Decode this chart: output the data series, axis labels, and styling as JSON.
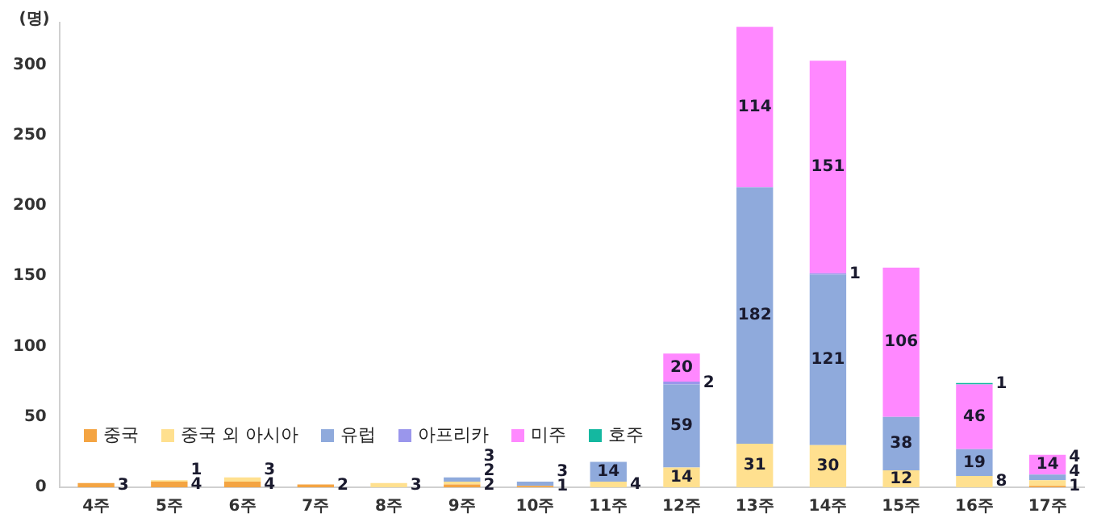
{
  "chart_data": {
    "type": "bar",
    "stacked": true,
    "ylabel": "(명)",
    "categories": [
      "4주",
      "5주",
      "6주",
      "7주",
      "8주",
      "9주",
      "10주",
      "11주",
      "12주",
      "13주",
      "14주",
      "15주",
      "16주",
      "17주"
    ],
    "series": [
      {
        "name": "중국",
        "color": "#f4a442",
        "values": [
          3,
          4,
          4,
          2,
          null,
          2,
          1,
          null,
          null,
          null,
          null,
          null,
          null,
          1
        ]
      },
      {
        "name": "중국 외 아시아",
        "color": "#ffe08f",
        "values": [
          null,
          1,
          3,
          null,
          3,
          2,
          null,
          4,
          14,
          31,
          30,
          12,
          8,
          4
        ]
      },
      {
        "name": "유럽",
        "color": "#8faadc",
        "values": [
          null,
          null,
          null,
          null,
          null,
          3,
          3,
          14,
          59,
          182,
          121,
          38,
          19,
          4
        ]
      },
      {
        "name": "아프리카",
        "color": "#9a96ec",
        "values": [
          null,
          null,
          null,
          null,
          null,
          null,
          null,
          null,
          2,
          null,
          1,
          null,
          null,
          null
        ]
      },
      {
        "name": "미주",
        "color": "#ff88ff",
        "values": [
          null,
          null,
          null,
          null,
          null,
          null,
          null,
          null,
          20,
          114,
          151,
          106,
          46,
          14
        ]
      },
      {
        "name": "호주",
        "color": "#14b8a0",
        "values": [
          null,
          null,
          null,
          null,
          null,
          null,
          null,
          null,
          null,
          null,
          null,
          null,
          1,
          null
        ]
      }
    ],
    "ylim": [
      0,
      330
    ],
    "yticks": [
      0,
      50,
      100,
      150,
      200,
      250,
      300
    ],
    "grid": false,
    "legend": "bottom left",
    "data_labels": true
  }
}
